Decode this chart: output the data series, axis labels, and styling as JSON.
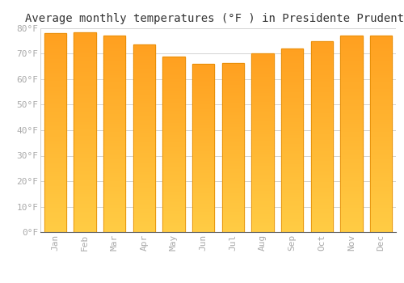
{
  "title": "Average monthly temperatures (°F ) in Presidente Prudente",
  "months": [
    "Jan",
    "Feb",
    "Mar",
    "Apr",
    "May",
    "Jun",
    "Jul",
    "Aug",
    "Sep",
    "Oct",
    "Nov",
    "Dec"
  ],
  "values": [
    78,
    78.5,
    77,
    73.5,
    69,
    66,
    66.5,
    70,
    72,
    75,
    77,
    77
  ],
  "bar_color_bottom": "#FFCC44",
  "bar_color_top": "#FFA020",
  "bar_color_edge": "#E08800",
  "background_color": "#FFFFFF",
  "grid_color": "#CCCCCC",
  "ylim": [
    0,
    80
  ],
  "yticks": [
    0,
    10,
    20,
    30,
    40,
    50,
    60,
    70,
    80
  ],
  "title_fontsize": 10,
  "tick_fontsize": 8,
  "tick_label_color": "#AAAAAA"
}
